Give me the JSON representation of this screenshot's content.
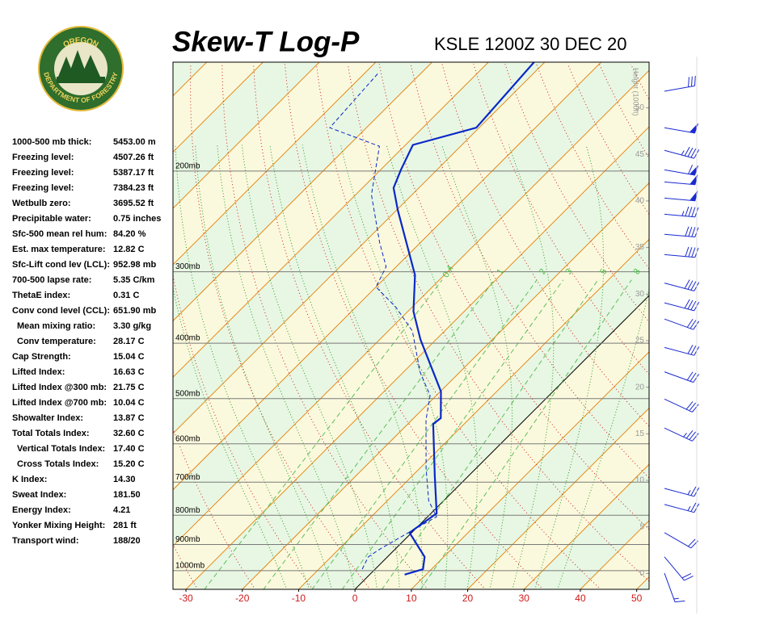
{
  "header": {
    "title": "Skew-T Log-P",
    "subtitle": "KSLE 1200Z 30 DEC 20"
  },
  "logo": {
    "top": "OREGON",
    "bottom": "DEPARTMENT OF FORESTRY"
  },
  "indices": [
    [
      "1000-500 mb thick:",
      "5453.00 m"
    ],
    [
      "Freezing level:",
      "4507.26 ft"
    ],
    [
      "Freezing level:",
      "5387.17 ft"
    ],
    [
      "Freezing level:",
      "7384.23 ft"
    ],
    [
      "Wetbulb zero:",
      "3695.52 ft"
    ],
    [
      "Precipitable water:",
      "0.75 inches"
    ],
    [
      "Sfc-500 mean rel hum:",
      "84.20 %"
    ],
    [
      "Est. max temperature:",
      "12.82 C"
    ],
    [
      "Sfc-Lift cond lev (LCL):",
      "952.98 mb"
    ],
    [
      "700-500 lapse rate:",
      "5.35 C/km"
    ],
    [
      "ThetaE index:",
      "0.31 C"
    ],
    [
      "Conv cond level (CCL):",
      "651.90 mb"
    ],
    [
      "Mean mixing ratio:",
      "3.30 g/kg"
    ],
    [
      "Conv temperature:",
      "28.17 C"
    ],
    [
      "Cap Strength:",
      "15.04 C"
    ],
    [
      "Lifted Index:",
      "16.63 C"
    ],
    [
      "Lifted Index @300 mb:",
      "21.75 C"
    ],
    [
      "Lifted Index @700 mb:",
      "10.04 C"
    ],
    [
      "Showalter Index:",
      "13.87 C"
    ],
    [
      "Total Totals Index:",
      "32.60 C"
    ],
    [
      "Vertical Totals Index:",
      "17.40 C"
    ],
    [
      "Cross Totals Index:",
      "15.20 C"
    ],
    [
      "K Index:",
      "14.30"
    ],
    [
      "Sweat Index:",
      "181.50"
    ],
    [
      "Energy Index:",
      "4.21"
    ],
    [
      "Yonker Mixing Height:",
      "281 ft"
    ],
    [
      "Transport wind:",
      "188/20"
    ]
  ],
  "chart_data": {
    "type": "skewt",
    "xlim": [
      -32.3,
      52.2
    ],
    "xticks": [
      -30,
      -20,
      -10,
      0,
      10,
      20,
      30,
      40,
      50
    ],
    "ylim": [
      1078,
      129
    ],
    "log_y": true,
    "yticks": [
      {
        "value": 1000,
        "label": "1000mb"
      },
      {
        "value": 900,
        "label": "900mb"
      },
      {
        "value": 800,
        "label": "800mb"
      },
      {
        "value": 700,
        "label": "700mb"
      },
      {
        "value": 600,
        "label": "600mb"
      },
      {
        "value": 500,
        "label": "500mb"
      },
      {
        "value": 400,
        "label": "400mb"
      },
      {
        "value": 300,
        "label": "300mb"
      },
      {
        "value": 200,
        "label": "200mb"
      }
    ],
    "y2label": "Height (1000ft)",
    "y2lim": [
      -1.7,
      54.9
    ],
    "y2ticks": [
      0,
      5,
      10,
      15,
      20,
      25,
      30,
      35,
      40,
      45,
      50
    ],
    "mixing_ratios": [
      {
        "value": 0.4,
        "label": "0.4"
      },
      1,
      2,
      3,
      5,
      8
    ],
    "series": [
      {
        "color": "#0a28c8",
        "dash": false,
        "x": [
          6.2,
          8.5,
          6.6,
          -0.4,
          1.0,
          -5.9,
          -15.5,
          -15.2,
          -19.9,
          -32.8,
          -39.0,
          -45.2,
          -59.8,
          -64.5,
          -66.4,
          -68.7,
          -60.5,
          -61.9
        ],
        "values": [
          1016,
          994,
          946,
          858,
          794,
          684,
          554,
          541,
          486,
          394,
          352,
          304,
          234,
          214,
          199,
          180,
          168,
          129
        ]
      },
      {
        "color": "#0a28c8",
        "dash": true,
        "x": [
          -2.3,
          -3.4,
          -2.7,
          -0.6,
          1.6,
          -2.7,
          -8.9,
          -17.5,
          -21.1,
          -27.1,
          -35.7,
          -42.9,
          -50.0,
          -51.8,
          -57.2,
          -67.2,
          -74.4,
          -86.5,
          -87.6
        ],
        "values": [
          994,
          946,
          916,
          858,
          805,
          754,
          662,
          545,
          494,
          449,
          381,
          346,
          319,
          294,
          267,
          220,
          181,
          168,
          135
        ]
      }
    ],
    "winds": {
      "pressure": [
        145,
        168,
        184,
        199,
        209,
        223,
        238,
        258,
        280,
        314,
        340,
        363,
        407,
        449,
        501,
        563,
        718,
        766,
        858,
        946,
        1010
      ],
      "direction": [
        80,
        100,
        105,
        100,
        95,
        95,
        95,
        95,
        95,
        105,
        105,
        110,
        105,
        110,
        115,
        115,
        105,
        105,
        120,
        140,
        160
      ],
      "speed": [
        30,
        50,
        45,
        60,
        50,
        50,
        45,
        40,
        40,
        40,
        40,
        30,
        30,
        30,
        30,
        35,
        25,
        25,
        20,
        20,
        15
      ]
    }
  }
}
